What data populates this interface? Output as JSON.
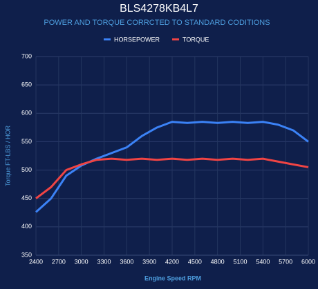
{
  "chart_data": {
    "type": "line",
    "title": "BLS4278KB4L7",
    "subtitle": "POWER AND TORQUE CORRCTED TO STANDARD CODITIONS",
    "x_label": "Engine Speed RPM",
    "y_label": "Torque FT-LBS / HOR",
    "x": [
      2400,
      2600,
      2800,
      3000,
      3200,
      3400,
      3600,
      3800,
      4000,
      4200,
      4400,
      4600,
      4800,
      5000,
      5200,
      5400,
      5600,
      5800,
      6000
    ],
    "series": [
      {
        "name": "HORSEPOWER",
        "color": "#3b82f6",
        "values": [
          426,
          450,
          490,
          508,
          520,
          530,
          540,
          560,
          575,
          585,
          583,
          585,
          583,
          585,
          583,
          585,
          580,
          570,
          550
        ]
      },
      {
        "name": "TORQUE",
        "color": "#ef4444",
        "values": [
          450,
          470,
          500,
          510,
          518,
          520,
          518,
          520,
          518,
          520,
          518,
          520,
          518,
          520,
          518,
          520,
          515,
          510,
          505
        ]
      }
    ],
    "xlim": [
      2400,
      6000
    ],
    "xticks": [
      2400,
      2700,
      3000,
      3300,
      3600,
      3900,
      4200,
      4500,
      4800,
      5100,
      5400,
      5700,
      6000
    ],
    "ylim": [
      350,
      700
    ],
    "yticks": [
      350,
      400,
      450,
      500,
      550,
      600,
      650,
      700
    ],
    "grid": true,
    "legend": "top"
  }
}
